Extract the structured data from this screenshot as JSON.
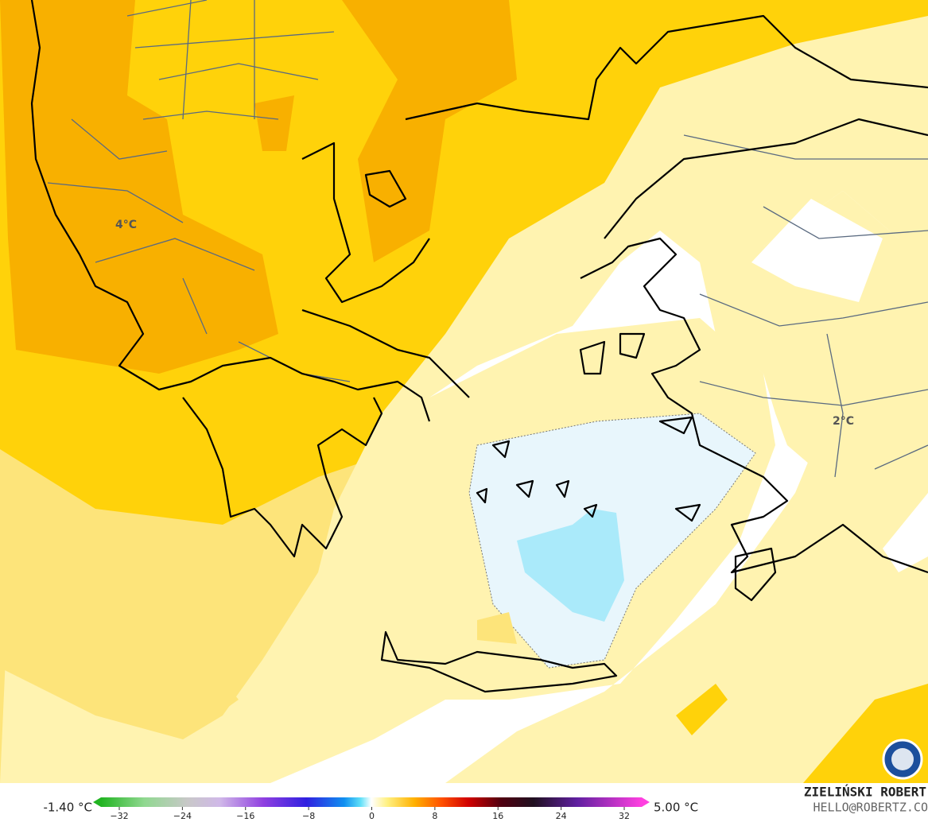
{
  "map": {
    "labels": [
      "4°C",
      "2°C"
    ]
  },
  "colorbar": {
    "min_label": "-1.40 °C",
    "max_label": "5.00 °C",
    "ticks": [
      {
        "value": -32,
        "label": "−32"
      },
      {
        "value": -24,
        "label": "−24"
      },
      {
        "value": -16,
        "label": "−16"
      },
      {
        "value": -8,
        "label": "−8"
      },
      0,
      8,
      16,
      24,
      32
    ]
  },
  "credit": {
    "author": "ZIELIŃSKI ROBERT",
    "email": "HELLO@ROBERTZ.CO"
  }
}
